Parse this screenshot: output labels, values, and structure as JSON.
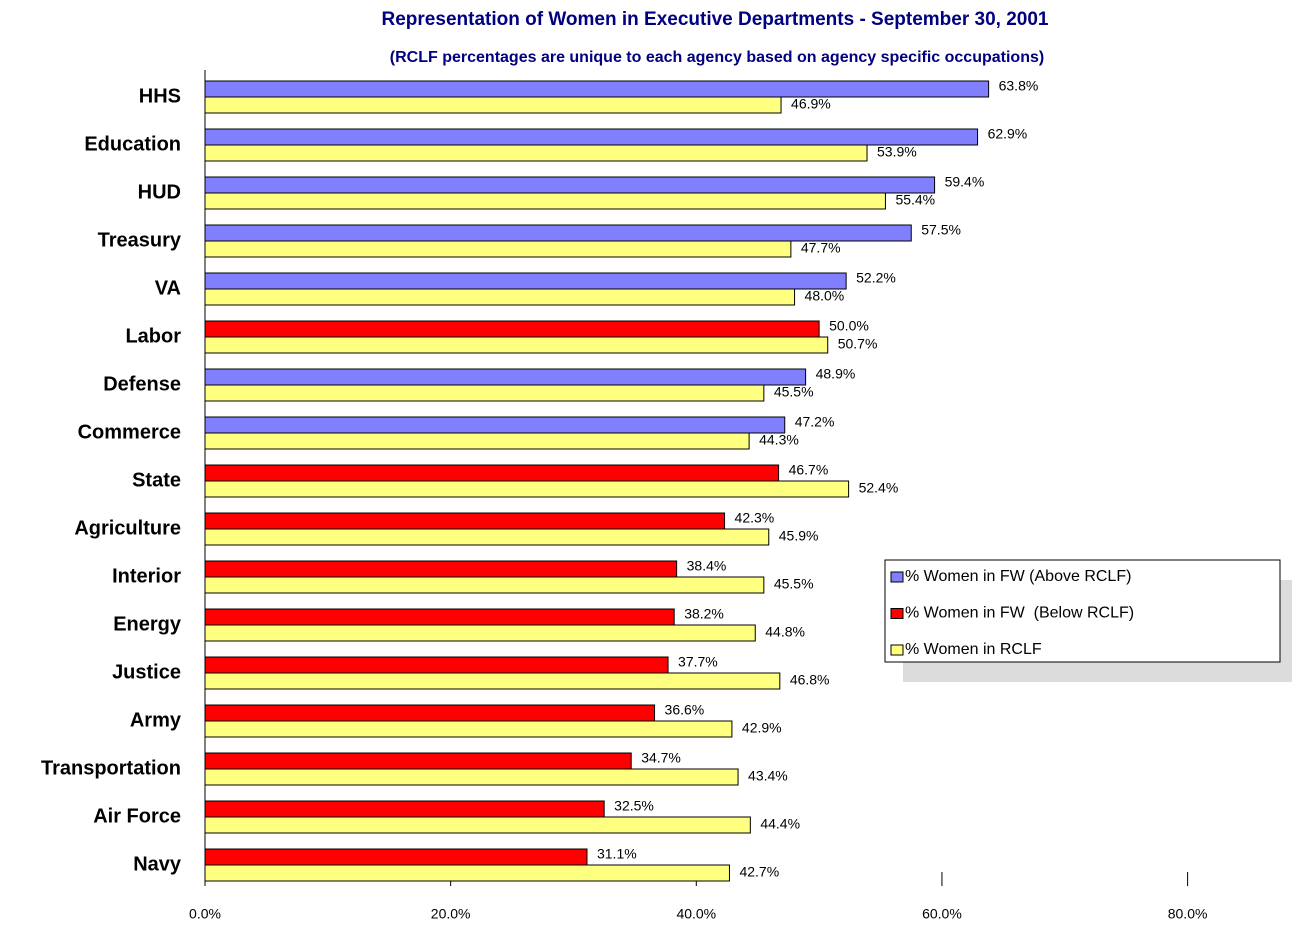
{
  "chart_data": {
    "type": "bar",
    "orientation": "horizontal",
    "title": "Representation of Women in Executive Departments - September 30, 2001",
    "subtitle": "(RCLF percentages are unique to each agency based on agency specific occupations)",
    "categories": [
      "HHS",
      "Education",
      "HUD",
      "Treasury",
      "VA",
      "Labor",
      "Defense",
      "Commerce",
      "State",
      "Agriculture",
      "Interior",
      "Energy",
      "Justice",
      "Army",
      "Transportation",
      "Air Force",
      "Navy"
    ],
    "series": [
      {
        "name": "% Women in FW (Above RCLF)",
        "color": "#8080ff",
        "values": [
          63.8,
          62.9,
          59.4,
          57.5,
          52.2,
          null,
          48.9,
          47.2,
          null,
          null,
          null,
          null,
          null,
          null,
          null,
          null,
          null
        ],
        "value_labels": [
          "63.8%",
          "62.9%",
          "59.4%",
          "57.5%",
          "52.2%",
          null,
          "48.9%",
          "47.2%",
          null,
          null,
          null,
          null,
          null,
          null,
          null,
          null,
          null
        ]
      },
      {
        "name": "% Women in FW  (Below RCLF)",
        "color": "#ff0000",
        "values": [
          null,
          null,
          null,
          null,
          null,
          50.0,
          null,
          null,
          46.7,
          42.3,
          38.4,
          38.2,
          37.7,
          36.6,
          34.7,
          32.5,
          31.1
        ],
        "value_labels": [
          null,
          null,
          null,
          null,
          null,
          "50.0%",
          null,
          null,
          "46.7%",
          "42.3%",
          "38.4%",
          "38.2%",
          "37.7%",
          "36.6%",
          "34.7%",
          "32.5%",
          "31.1%"
        ]
      },
      {
        "name": "% Women in RCLF",
        "color": "#ffff80",
        "values": [
          46.9,
          53.9,
          55.4,
          47.7,
          48.0,
          50.7,
          45.5,
          44.3,
          52.4,
          45.9,
          45.5,
          44.8,
          46.8,
          42.9,
          43.4,
          44.4,
          42.7
        ],
        "value_labels": [
          "46.9%",
          "53.9%",
          "55.4%",
          "47.7%",
          "48.0%",
          "50.7%",
          "45.5%",
          "44.3%",
          "52.4%",
          "45.9%",
          "45.5%",
          "44.8%",
          "46.8%",
          "42.9%",
          "43.4%",
          "44.4%",
          "42.7%"
        ]
      }
    ],
    "xlim": [
      0,
      88.5
    ],
    "xticks": [
      {
        "value": 0,
        "label": "0.0%"
      },
      {
        "value": 20,
        "label": "20.0%"
      },
      {
        "value": 40,
        "label": "40.0%"
      },
      {
        "value": 60,
        "label": "60.0%"
      },
      {
        "value": 80,
        "label": "80.0%"
      }
    ],
    "grid": false,
    "legend": "right"
  }
}
